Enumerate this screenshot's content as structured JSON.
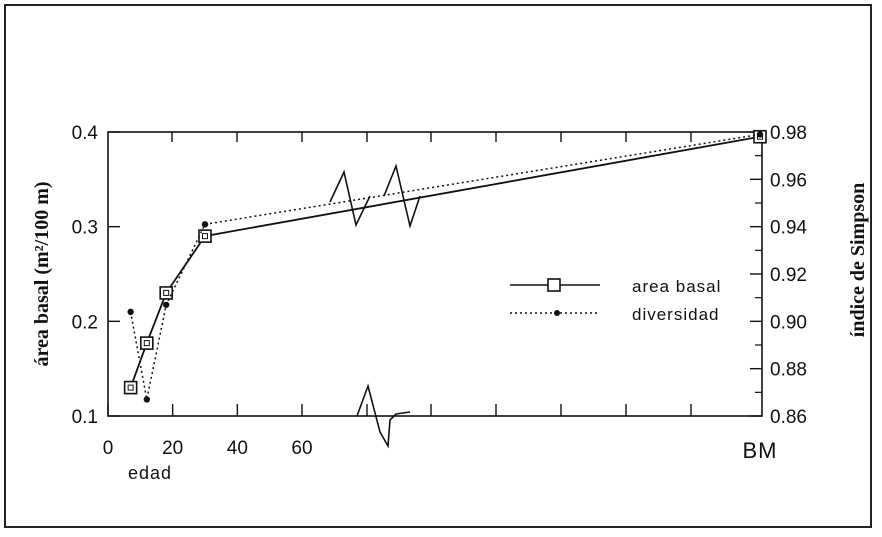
{
  "chart_data": {
    "type": "line",
    "y_left_label": "área basal (m²/100 m)",
    "y_right_label": "índice de Simpson",
    "x_label": "edad",
    "x_ticks": [
      "0",
      "20",
      "40",
      "60"
    ],
    "x_end_label": "BM",
    "y_left_ticks": [
      "0.1",
      "0.2",
      "0.3",
      "0.4"
    ],
    "y_right_ticks": [
      "0.86",
      "0.88",
      "0.90",
      "0.92",
      "0.94",
      "0.96",
      "0.98"
    ],
    "y_left_range": [
      0.1,
      0.4
    ],
    "y_right_range": [
      0.86,
      0.98
    ],
    "legend": {
      "placement": "right-middle"
    },
    "series": [
      {
        "name": "area basal",
        "axis": "left",
        "style": "solid",
        "marker": "open-square",
        "x": [
          7,
          12,
          18,
          30,
          "BM"
        ],
        "values": [
          0.13,
          0.177,
          0.23,
          0.29,
          0.395
        ]
      },
      {
        "name": "diversidad",
        "axis": "right",
        "style": "dotted",
        "marker": "filled-circle",
        "x": [
          7,
          12,
          18,
          30,
          "BM"
        ],
        "values": [
          0.904,
          0.867,
          0.907,
          0.941,
          0.979
        ]
      }
    ]
  }
}
